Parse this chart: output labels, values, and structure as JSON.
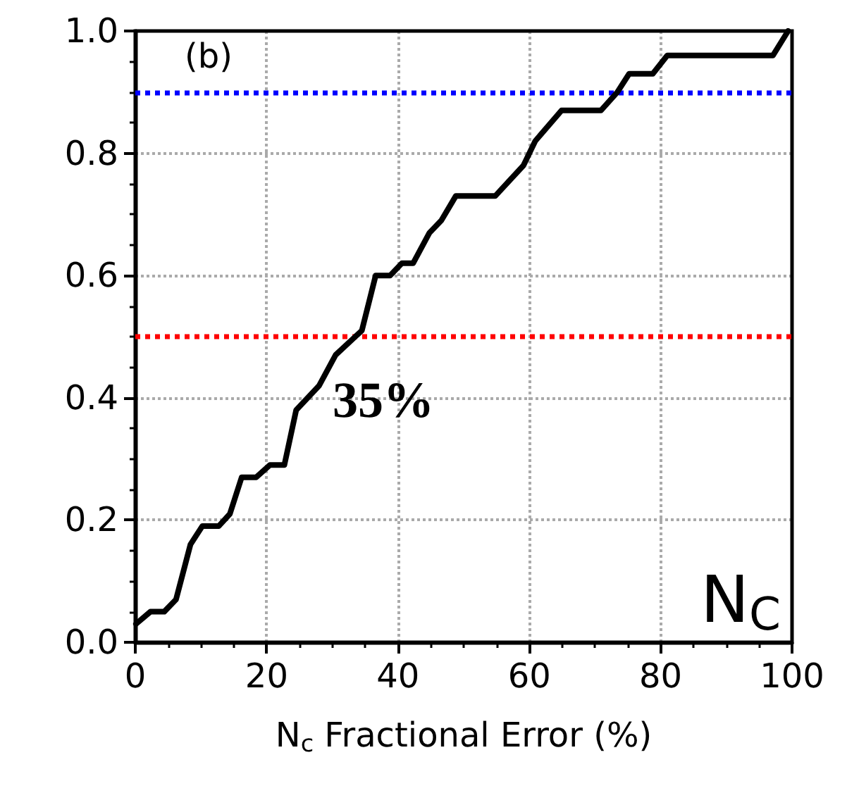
{
  "chart_data": {
    "type": "line",
    "xlabel": "N$_{c}$ Fractional Error (%)",
    "series": [
      {
        "color": "#000000",
        "x": [
          0.1,
          2.3,
          4.4,
          6.2,
          8.4,
          10.2,
          12.7,
          14.4,
          16.2,
          18.4,
          20.5,
          22.7,
          24.5,
          28.0,
          30.5,
          34.5,
          36.6,
          38.8,
          40.6,
          42.3,
          44.8,
          46.6,
          48.8,
          54.8,
          59.1,
          60.9,
          64.9,
          70.9,
          73.4,
          75.2,
          78.8,
          81.0,
          97.1,
          99.4
        ],
        "values": [
          0.03,
          0.05,
          0.05,
          0.07,
          0.16,
          0.19,
          0.19,
          0.21,
          0.27,
          0.27,
          0.29,
          0.29,
          0.38,
          0.42,
          0.47,
          0.51,
          0.6,
          0.6,
          0.62,
          0.62,
          0.67,
          0.69,
          0.73,
          0.73,
          0.78,
          0.82,
          0.87,
          0.87,
          0.9,
          0.93,
          0.93,
          0.96,
          0.96,
          1.0
        ]
      }
    ],
    "xlim": [
      0,
      100
    ],
    "xticks": [
      0,
      20,
      40,
      60,
      80,
      100
    ],
    "ylim": [
      0,
      1.0
    ],
    "yticks": [
      {
        "value": 0,
        "label": "0.0"
      },
      {
        "value": 0.2,
        "label": "0.2"
      },
      {
        "value": 0.4,
        "label": "0.4"
      },
      {
        "value": 0.6,
        "label": "0.6"
      },
      {
        "value": 0.8,
        "label": "0.8"
      },
      {
        "value": 1.0,
        "label": "1.0"
      }
    ],
    "grid": true,
    "marker": "none",
    "line_style": "solid",
    "ref_lines": [
      {
        "axis": "y",
        "value": 0.9,
        "color": "#0000ff",
        "line_style": "dotted"
      },
      {
        "axis": "y",
        "value": 0.5,
        "color": "#ff0000",
        "line_style": "dotted"
      }
    ],
    "annotations": [
      "(b)",
      "35%",
      "N$_{C}$"
    ]
  }
}
